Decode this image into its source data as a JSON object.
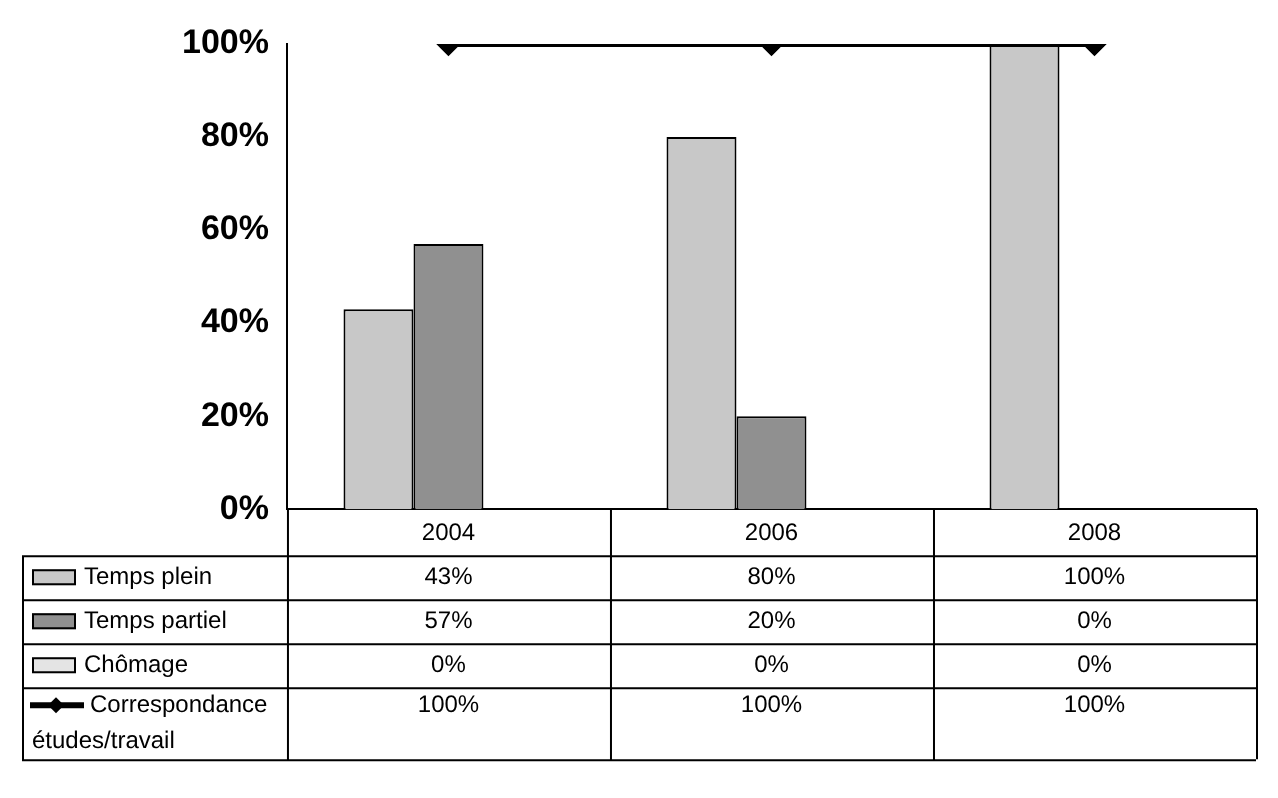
{
  "chart_data": {
    "type": "bar",
    "categories": [
      "2004",
      "2006",
      "2008"
    ],
    "series": [
      {
        "name": "Temps plein",
        "color": "#c8c8c8",
        "values": [
          43,
          80,
          100
        ],
        "value_labels": [
          "43%",
          "80%",
          "100%"
        ]
      },
      {
        "name": "Temps partiel",
        "color": "#909090",
        "values": [
          57,
          20,
          0
        ],
        "value_labels": [
          "57%",
          "20%",
          "0%"
        ]
      },
      {
        "name": "Chômage",
        "color": "#e4e4e4",
        "values": [
          0,
          0,
          0
        ],
        "value_labels": [
          "0%",
          "0%",
          "0%"
        ]
      },
      {
        "name": "Correspondance études/travail",
        "type": "line",
        "color": "#000000",
        "values": [
          100,
          100,
          100
        ],
        "value_labels": [
          "100%",
          "100%",
          "100%"
        ],
        "marker": "diamond"
      }
    ],
    "ylim": [
      0,
      100
    ],
    "yticks": [
      {
        "value": 0,
        "label": "0%"
      },
      {
        "value": 20,
        "label": "20%"
      },
      {
        "value": 40,
        "label": "40%"
      },
      {
        "value": 60,
        "label": "60%"
      },
      {
        "value": 80,
        "label": "80%"
      },
      {
        "value": 100,
        "label": "100%"
      }
    ],
    "grid": false,
    "legend": "bottom"
  }
}
